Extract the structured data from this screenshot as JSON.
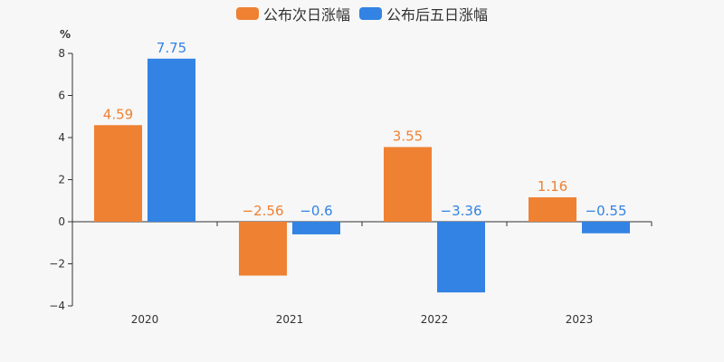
{
  "chart_data": {
    "type": "bar",
    "categories": [
      "2020",
      "2021",
      "2022",
      "2023"
    ],
    "series": [
      {
        "name": "公布次日涨幅",
        "color": "#ef8133",
        "values": [
          4.59,
          -2.56,
          3.55,
          1.16
        ],
        "labels": [
          "4.59",
          "−2.56",
          "3.55",
          "1.16"
        ]
      },
      {
        "name": "公布后五日涨幅",
        "color": "#3283e4",
        "values": [
          7.75,
          -0.6,
          -3.36,
          -0.55
        ],
        "labels": [
          "7.75",
          "−0.6",
          "−3.36",
          "−0.55"
        ]
      }
    ],
    "yunit": "%",
    "ylim": [
      -4,
      8
    ],
    "yticks": [
      -4,
      -2,
      0,
      2,
      4,
      6,
      8
    ],
    "ytick_labels": [
      "−4",
      "−2",
      "0",
      "2",
      "4",
      "6",
      "8"
    ],
    "grid": false,
    "legend_position": "top-center"
  }
}
